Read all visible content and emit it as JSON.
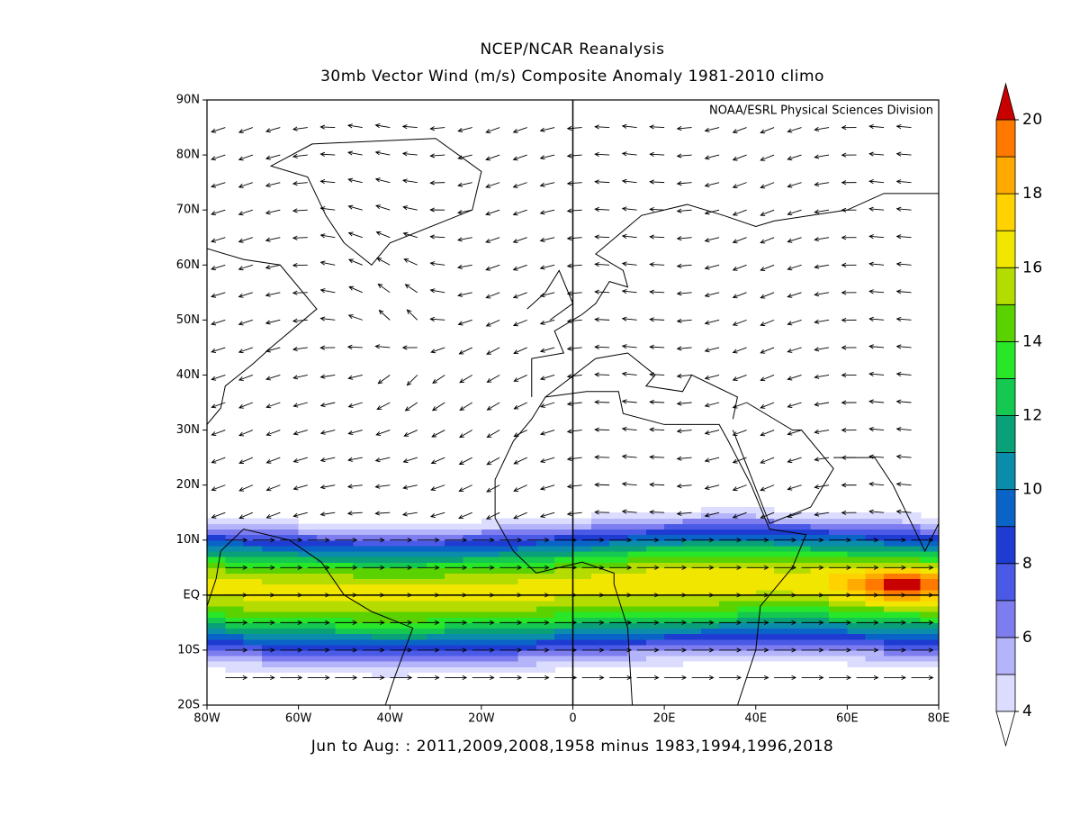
{
  "map": {
    "title": "NCEP/NCAR Reanalysis",
    "subtitle": "30mb Vector Wind (m/s) Composite Anomaly 1981-2010 climo",
    "attribution": "NOAA/ESRL Physical Sciences Division",
    "caption": "Jun to Aug: : 2011,2009,2008,1958 minus 1983,1994,1996,2018",
    "xlim": [
      -80,
      80
    ],
    "ylim": [
      -20,
      90
    ],
    "xticks": [
      {
        "value": -80,
        "label": "80W"
      },
      {
        "value": -60,
        "label": "60W"
      },
      {
        "value": -40,
        "label": "40W"
      },
      {
        "value": -20,
        "label": "20W"
      },
      0,
      {
        "value": 20,
        "label": "20E"
      },
      {
        "value": 40,
        "label": "40E"
      },
      {
        "value": 60,
        "label": "60E"
      },
      {
        "value": 80,
        "label": "80E"
      }
    ],
    "yticks": [
      {
        "value": 90,
        "label": "90N"
      },
      {
        "value": 80,
        "label": "80N"
      },
      {
        "value": 70,
        "label": "70N"
      },
      {
        "value": 60,
        "label": "60N"
      },
      {
        "value": 50,
        "label": "50N"
      },
      {
        "value": 40,
        "label": "40N"
      },
      {
        "value": 30,
        "label": "30N"
      },
      {
        "value": 20,
        "label": "20N"
      },
      {
        "value": 10,
        "label": "10N"
      },
      {
        "value": 0,
        "label": "EQ"
      },
      {
        "value": -10,
        "label": "10S"
      },
      {
        "value": -20,
        "label": "20S"
      }
    ],
    "colorbar": {
      "levels": [
        4,
        5,
        6,
        7,
        8,
        9,
        10,
        11,
        12,
        13,
        14,
        15,
        16,
        17,
        18,
        19,
        20
      ],
      "colors": [
        "#dcdcff",
        "#b4b4fa",
        "#7d7df0",
        "#4b5ae6",
        "#1e3cd2",
        "#0a64c8",
        "#0a8caa",
        "#0aa078",
        "#14c850",
        "#28e628",
        "#5ad200",
        "#b4dc00",
        "#f0e600",
        "#ffd200",
        "#ffaa00",
        "#ff7800",
        "#ff3200"
      ],
      "over_color": "#c80000",
      "under_color": "#ffffff",
      "ticks": [
        4,
        6,
        8,
        10,
        12,
        14,
        16,
        18,
        20
      ]
    }
  }
}
